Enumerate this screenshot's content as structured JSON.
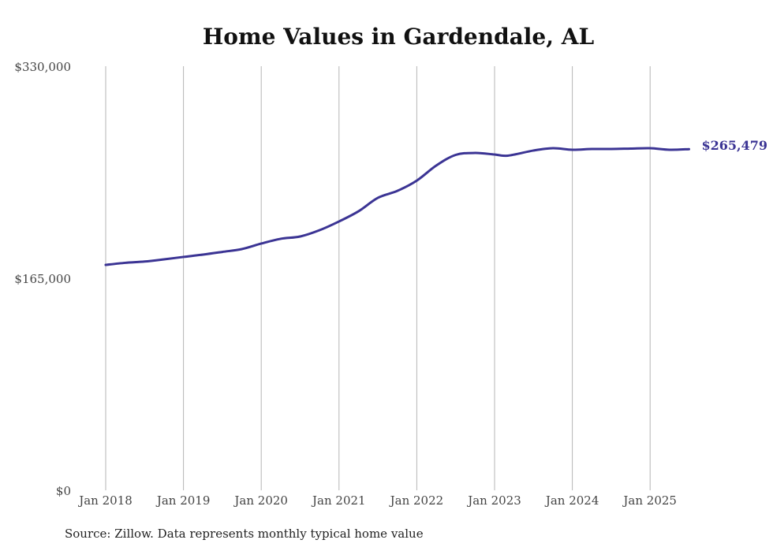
{
  "chart_data": {
    "type": "line",
    "title": "Home Values in Gardendale, AL",
    "source": "Source: Zillow. Data represents monthly typical home value",
    "xlabel": "",
    "ylabel": "",
    "ylim": [
      0,
      330000
    ],
    "xlim": [
      2018.0,
      2025.5
    ],
    "y_ticks": [
      0,
      165000,
      330000
    ],
    "y_tick_labels": [
      "$0",
      "$165,000",
      "$330,000"
    ],
    "x_ticks": [
      2018,
      2019,
      2020,
      2021,
      2022,
      2023,
      2024,
      2025
    ],
    "x_tick_labels": [
      "Jan 2018",
      "Jan 2019",
      "Jan 2020",
      "Jan 2021",
      "Jan 2022",
      "Jan 2023",
      "Jan 2024",
      "Jan 2025"
    ],
    "grid": "vertical",
    "end_label": "$265,479",
    "series": [
      {
        "name": "Typical home value",
        "color": "#3b3494",
        "x": [
          2018.0,
          2018.25,
          2018.5,
          2018.75,
          2019.0,
          2019.25,
          2019.5,
          2019.75,
          2020.0,
          2020.25,
          2020.5,
          2020.75,
          2021.0,
          2021.25,
          2021.5,
          2021.75,
          2022.0,
          2022.25,
          2022.5,
          2022.75,
          2023.0,
          2023.17,
          2023.5,
          2023.75,
          2024.0,
          2024.25,
          2024.5,
          2024.75,
          2025.0,
          2025.25,
          2025.5
        ],
        "values": [
          175400,
          177000,
          178000,
          179700,
          181600,
          183400,
          185500,
          187700,
          192000,
          195700,
          197500,
          202400,
          209200,
          217100,
          227600,
          233000,
          241000,
          252700,
          261000,
          262500,
          261300,
          260400,
          264400,
          266200,
          265000,
          265600,
          265600,
          265900,
          266200,
          265000,
          265479
        ]
      }
    ]
  }
}
